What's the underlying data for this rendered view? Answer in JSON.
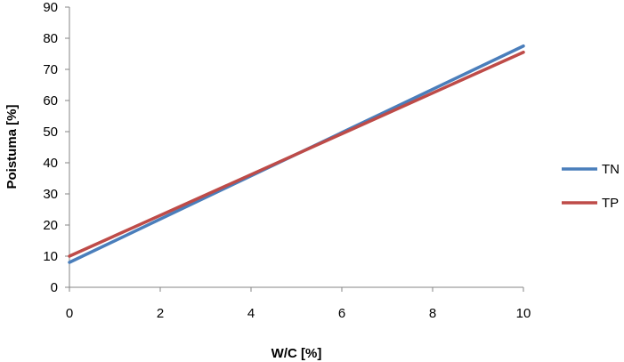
{
  "chart_data": {
    "type": "line",
    "xlabel": "W/C [%]",
    "ylabel": "Poistuma [%]",
    "xlim": [
      0,
      10
    ],
    "ylim": [
      0,
      90
    ],
    "xticks": [
      0,
      2,
      4,
      6,
      8,
      10
    ],
    "yticks": [
      0,
      10,
      20,
      30,
      40,
      50,
      60,
      70,
      80,
      90
    ],
    "grid": false,
    "legend_position": "right",
    "series": [
      {
        "name": "TN",
        "color": "#4a7ebb",
        "x": [
          0,
          10
        ],
        "y": [
          8,
          77.5
        ]
      },
      {
        "name": "TP",
        "color": "#be4b48",
        "x": [
          0,
          10
        ],
        "y": [
          10,
          75.5
        ]
      }
    ]
  }
}
